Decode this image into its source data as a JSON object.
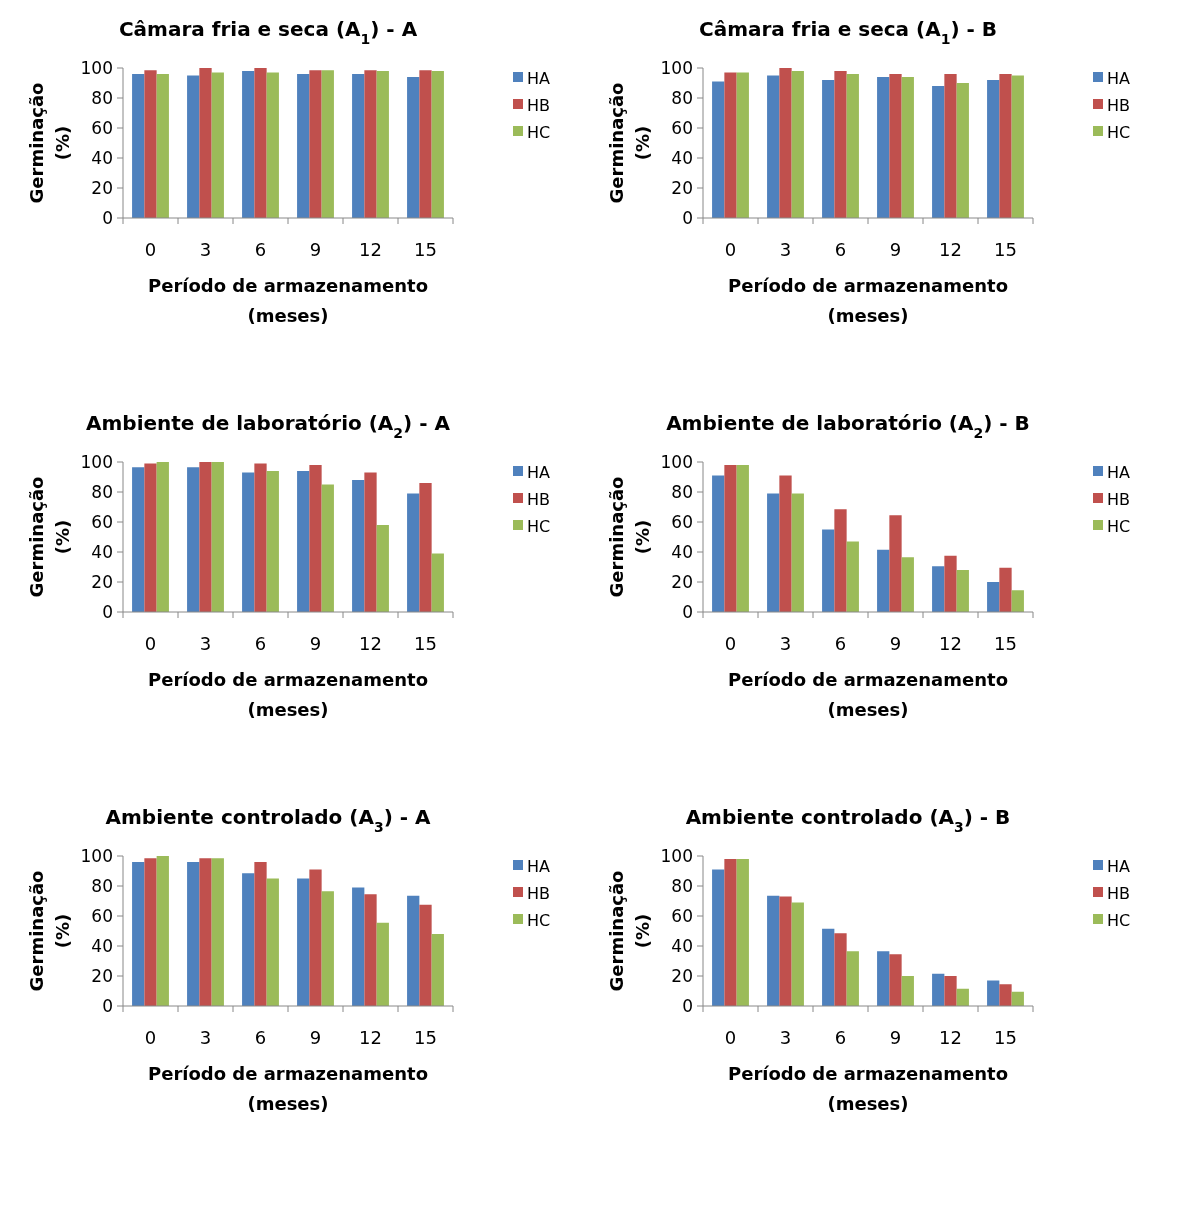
{
  "chart_data": [
    {
      "type": "bar",
      "title": "Câmara fria e seca (A$_{1}$) - A",
      "xlabel": "Período de armazenamento\n(meses)",
      "ylabel": "Germinação\n(%)",
      "categories": [
        "0",
        "3",
        "6",
        "9",
        "12",
        "15"
      ],
      "ylim": [
        0,
        100
      ],
      "yticks": [
        0,
        20,
        40,
        60,
        80,
        100
      ],
      "legend": "right",
      "series": [
        {
          "name": "HA",
          "color": "#4f81bd",
          "values": [
            96,
            95,
            98,
            96,
            96,
            94
          ]
        },
        {
          "name": "HB",
          "color": "#c0504d",
          "values": [
            98.5,
            100,
            100,
            98.5,
            98.5,
            98.5
          ]
        },
        {
          "name": "HC",
          "color": "#9bbb59",
          "values": [
            96,
            97,
            97,
            98.5,
            98,
            98
          ]
        }
      ]
    },
    {
      "type": "bar",
      "title": "Câmara fria e seca (A$_{1}$) - B",
      "xlabel": "Período de armazenamento\n(meses)",
      "ylabel": "Germinação\n(%)",
      "categories": [
        "0",
        "3",
        "6",
        "9",
        "12",
        "15"
      ],
      "ylim": [
        0,
        100
      ],
      "yticks": [
        0,
        20,
        40,
        60,
        80,
        100
      ],
      "legend": "right",
      "series": [
        {
          "name": "HA",
          "color": "#4f81bd",
          "values": [
            91,
            95,
            92,
            94,
            88,
            92
          ]
        },
        {
          "name": "HB",
          "color": "#c0504d",
          "values": [
            97,
            100,
            98,
            96,
            96,
            96
          ]
        },
        {
          "name": "HC",
          "color": "#9bbb59",
          "values": [
            97,
            98,
            96,
            94,
            90,
            95
          ]
        }
      ]
    },
    {
      "type": "bar",
      "title": "Ambiente de laboratório (A$_{2}$) - A",
      "xlabel": "Período de armazenamento\n(meses)",
      "ylabel": "Germinação\n(%)",
      "categories": [
        "0",
        "3",
        "6",
        "9",
        "12",
        "15"
      ],
      "ylim": [
        0,
        100
      ],
      "yticks": [
        0,
        20,
        40,
        60,
        80,
        100
      ],
      "legend": "right",
      "series": [
        {
          "name": "HA",
          "color": "#4f81bd",
          "values": [
            96.5,
            96.5,
            93,
            94,
            88,
            79
          ]
        },
        {
          "name": "HB",
          "color": "#c0504d",
          "values": [
            99,
            100,
            99,
            98,
            93,
            86
          ]
        },
        {
          "name": "HC",
          "color": "#9bbb59",
          "values": [
            100,
            100,
            94,
            85,
            58,
            39
          ]
        }
      ]
    },
    {
      "type": "bar",
      "title": "Ambiente de laboratório (A$_{2}$) - B",
      "xlabel": "Período de armazenamento\n(meses)",
      "ylabel": "Germinação\n(%)",
      "categories": [
        "0",
        "3",
        "6",
        "9",
        "12",
        "15"
      ],
      "ylim": [
        0,
        100
      ],
      "yticks": [
        0,
        20,
        40,
        60,
        80,
        100
      ],
      "legend": "right",
      "series": [
        {
          "name": "HA",
          "color": "#4f81bd",
          "values": [
            91,
            79,
            55,
            41.5,
            30.5,
            20
          ]
        },
        {
          "name": "HB",
          "color": "#c0504d",
          "values": [
            98,
            91,
            68.5,
            64.5,
            37.5,
            29.5
          ]
        },
        {
          "name": "HC",
          "color": "#9bbb59",
          "values": [
            98,
            79,
            47,
            36.5,
            28,
            14.5
          ]
        }
      ]
    },
    {
      "type": "bar",
      "title": "Ambiente controlado (A$_{3}$) - A",
      "xlabel": "Período de armazenamento\n(meses)",
      "ylabel": "Germinação\n(%)",
      "categories": [
        "0",
        "3",
        "6",
        "9",
        "12",
        "15"
      ],
      "ylim": [
        0,
        100
      ],
      "yticks": [
        0,
        20,
        40,
        60,
        80,
        100
      ],
      "legend": "right",
      "series": [
        {
          "name": "HA",
          "color": "#4f81bd",
          "values": [
            96,
            96,
            88.5,
            85,
            79,
            73.5
          ]
        },
        {
          "name": "HB",
          "color": "#c0504d",
          "values": [
            98.5,
            98.5,
            96,
            91,
            74.5,
            67.5
          ]
        },
        {
          "name": "HC",
          "color": "#9bbb59",
          "values": [
            100,
            98.5,
            85,
            76.5,
            55.5,
            48
          ]
        }
      ]
    },
    {
      "type": "bar",
      "title": "Ambiente controlado (A$_{3}$) - B",
      "xlabel": "Período de armazenamento\n(meses)",
      "ylabel": "Germinação\n(%)",
      "categories": [
        "0",
        "3",
        "6",
        "9",
        "12",
        "15"
      ],
      "ylim": [
        0,
        100
      ],
      "yticks": [
        0,
        20,
        40,
        60,
        80,
        100
      ],
      "legend": "right",
      "series": [
        {
          "name": "HA",
          "color": "#4f81bd",
          "values": [
            91,
            73.5,
            51.5,
            36.5,
            21.5,
            17
          ]
        },
        {
          "name": "HB",
          "color": "#c0504d",
          "values": [
            98,
            73,
            48.5,
            34.5,
            20,
            14.5
          ]
        },
        {
          "name": "HC",
          "color": "#9bbb59",
          "values": [
            98,
            69,
            36.5,
            20,
            11.5,
            9.5
          ]
        }
      ]
    }
  ]
}
